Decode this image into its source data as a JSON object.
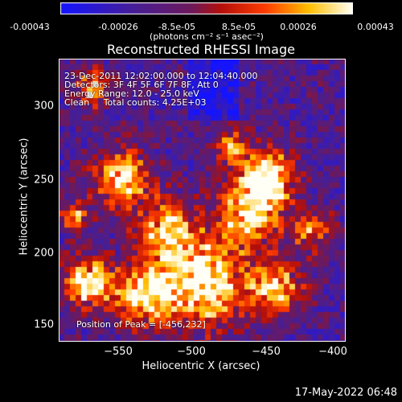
{
  "colorbar": {
    "ticks": [
      "-0.00043",
      "-0.00026",
      "-8.5e-05",
      "8.5e-05",
      "0.00026",
      "0.00043"
    ],
    "units": "(photons cm⁻² s⁻¹ asec⁻²)",
    "min": -0.00043,
    "max": 0.00043
  },
  "info": {
    "line1": "23-Dec-2011 12:02:00.000 to 12:04:40.000",
    "line2": "Detectors: 3F 4F 5F 6F 7F 8F, Att 0",
    "line3": "Energy Range: 12.0 - 25.0 keV",
    "line4": "Clean     Total counts: 4.25E+03",
    "peak": "Position of Peak = [-456,232]"
  },
  "timestamp": "17-May-2022 06:48",
  "chart_data": {
    "type": "heatmap",
    "title": "Reconstructed RHESSI Image",
    "xlabel": "Heliocentric X (arcsec)",
    "ylabel": "Heliocentric Y (arcsec)",
    "xlim": [
      -587,
      -400
    ],
    "ylim": [
      140,
      328
    ],
    "xticks": [
      -550,
      -500,
      -450,
      -400
    ],
    "yticks": [
      150,
      200,
      250,
      300
    ],
    "xtick_labels": [
      "−550",
      "−500",
      "−450",
      "−400"
    ],
    "ytick_labels": [
      "150",
      "200",
      "250",
      "300"
    ],
    "colormap": "RHESSI blue-purple-red-yellow-white",
    "peak_position": [
      -456,
      232
    ]
  }
}
